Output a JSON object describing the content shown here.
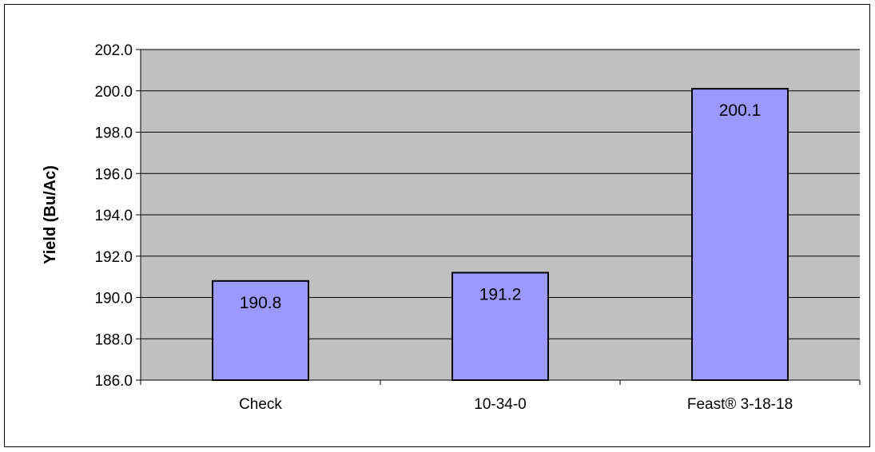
{
  "chart_data": {
    "type": "bar",
    "title": "",
    "xlabel": "",
    "ylabel": "Yield (Bu/Ac)",
    "categories": [
      "Check",
      "10-34-0",
      "Feast® 3-18-18"
    ],
    "values": [
      190.8,
      191.2,
      200.1
    ],
    "data_labels": [
      "190.8",
      "191.2",
      "200.1"
    ],
    "ylim": [
      186.0,
      202.0
    ],
    "yticks": [
      186.0,
      188.0,
      190.0,
      192.0,
      194.0,
      196.0,
      198.0,
      200.0,
      202.0
    ],
    "ytick_labels": [
      "186.0",
      "188.0",
      "190.0",
      "192.0",
      "194.0",
      "196.0",
      "198.0",
      "200.0",
      "202.0"
    ],
    "grid": true,
    "legend": "none",
    "colors": {
      "bar_fill": "#9999FF",
      "bar_stroke": "#000000",
      "plot_background": "#C0C0C0",
      "gridline": "#000000"
    }
  }
}
